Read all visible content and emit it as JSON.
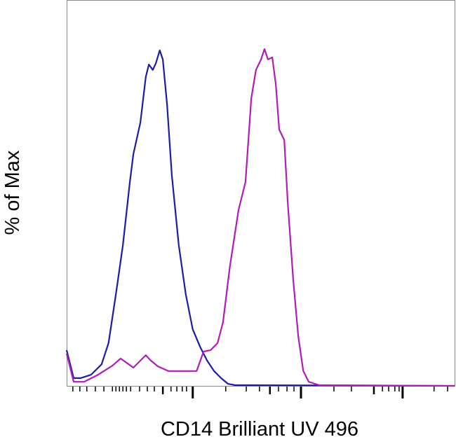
{
  "chart_data": {
    "type": "line",
    "title": "",
    "xlabel": "CD14 Brilliant UV 496",
    "ylabel": "% of Max",
    "xlim": [
      0,
      1000
    ],
    "ylim": [
      0,
      100
    ],
    "grid": false,
    "legend": "none",
    "x_major_ticks": [
      325,
      604,
      866
    ],
    "x_medium_ticks": [
      248,
      524,
      792
    ],
    "x_minor_ticks": [
      16,
      34,
      52,
      74,
      96,
      118,
      127,
      136,
      145,
      154,
      165,
      188,
      208,
      226,
      269,
      284,
      298,
      309,
      410,
      463,
      497,
      546,
      568,
      586,
      689,
      734,
      814,
      830,
      846,
      857,
      947,
      982
    ],
    "series": [
      {
        "color": "#1c1ca8",
        "x": [
          0,
          18,
          36,
          63,
          90,
          108,
          127,
          145,
          163,
          172,
          190,
          204,
          212,
          222,
          230,
          240,
          248,
          259,
          271,
          289,
          307,
          325,
          344,
          362,
          380,
          398,
          416,
          434,
          479,
          1000
        ],
        "y": [
          10.6,
          2.3,
          2.3,
          3.3,
          6.4,
          12.7,
          27.2,
          41.8,
          60.5,
          68.8,
          78.2,
          91.7,
          95.4,
          93.8,
          95.8,
          99.6,
          96.9,
          83.4,
          62.6,
          41.8,
          27.2,
          16.8,
          11.6,
          7.5,
          4.4,
          2.3,
          0.6,
          0.2,
          0.2,
          0
        ]
      },
      {
        "color": "#b01cb8",
        "x": [
          0,
          18,
          45,
          81,
          118,
          139,
          154,
          172,
          190,
          204,
          217,
          235,
          262,
          335,
          353,
          371,
          389,
          403,
          421,
          443,
          461,
          476,
          488,
          501,
          510,
          519,
          530,
          539,
          548,
          561,
          570,
          584,
          597,
          610,
          624,
          651,
          1000
        ],
        "y": [
          9.6,
          1.2,
          1.2,
          3.3,
          6.0,
          8.1,
          6.9,
          5.4,
          7.5,
          9.1,
          7.5,
          5.8,
          4.4,
          4.4,
          10.2,
          10.6,
          12.7,
          18.9,
          35.6,
          52.2,
          60.5,
          85.4,
          93.8,
          96.9,
          100,
          96.9,
          97.5,
          89.6,
          76.1,
          73.0,
          54.3,
          31.4,
          14.8,
          4.4,
          1.2,
          0.2,
          0
        ]
      }
    ]
  }
}
